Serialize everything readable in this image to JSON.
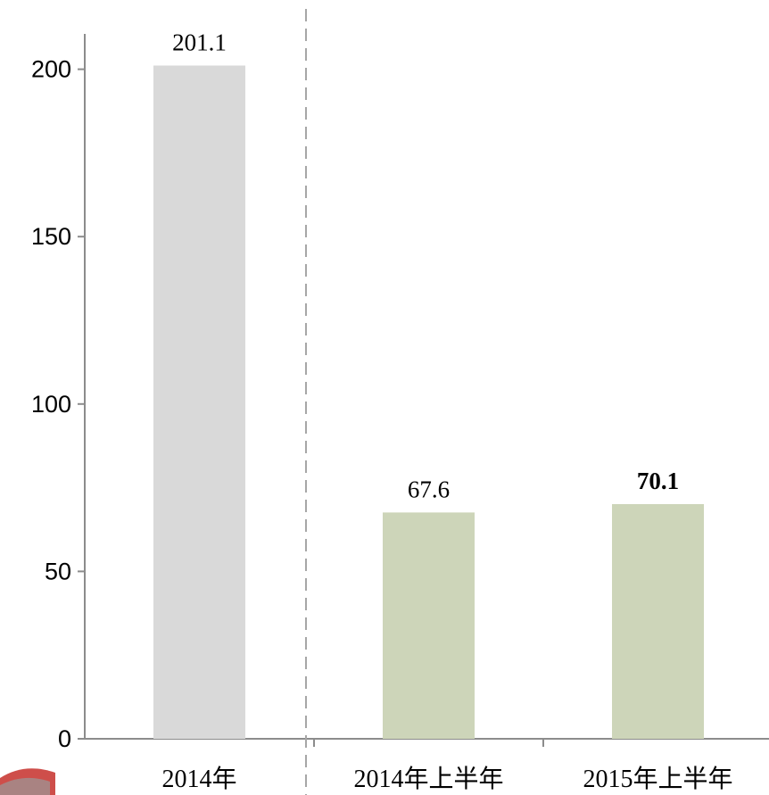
{
  "chart_data": {
    "type": "bar",
    "categories": [
      "2014年",
      "2014年上半年",
      "2015年上半年"
    ],
    "values": [
      201.1,
      67.6,
      70.1
    ],
    "data_labels": [
      "201.1",
      "67.6",
      "70.1"
    ],
    "emphasized_labels": [
      false,
      false,
      true
    ],
    "yticks": [
      "0",
      "50",
      "100",
      "150",
      "200"
    ],
    "ylim": [
      0,
      210
    ],
    "ylabel": "",
    "xlabel": "",
    "title": "",
    "grid": false,
    "legend": "none",
    "separator_after_category": 0,
    "colors": {
      "bar_first": "#d9d9d9",
      "bar_rest": "#cdd5b9",
      "axis": "#8c8c8c",
      "separator": "#a6a6a6"
    }
  }
}
